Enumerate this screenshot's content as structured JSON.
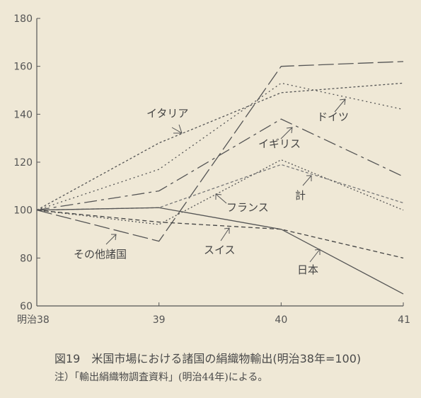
{
  "caption": {
    "title": "図19　米国市場における諸国の絹織物輸出(明治38年=100)",
    "note": "注）「輸出絹織物調査資料」(明治44年)による。"
  },
  "chart_data": {
    "type": "line",
    "categories": [
      "明治38",
      "39",
      "40",
      "41"
    ],
    "ylim": [
      60,
      180
    ],
    "yticks": [
      60,
      80,
      100,
      120,
      140,
      160,
      180
    ],
    "grid": false,
    "series": [
      {
        "name": "イタリア",
        "values": [
          100,
          128,
          149,
          153
        ],
        "dash": "3,3",
        "color": "#555555"
      },
      {
        "name": "ドイツ",
        "values": [
          100,
          117,
          153,
          142
        ],
        "dash": "2,4",
        "color": "#555555"
      },
      {
        "name": "イギリス",
        "values": [
          100,
          108,
          138,
          114
        ],
        "dash": "18,6,4,6",
        "color": "#555555"
      },
      {
        "name": "その他諸国",
        "values": [
          100,
          87,
          160,
          162
        ],
        "dash": "22,6",
        "color": "#555555"
      },
      {
        "name": "計",
        "values": [
          100,
          101,
          119,
          103
        ],
        "dash": "4,3",
        "color": "#777777"
      },
      {
        "name": "フランス",
        "values": [
          100,
          94,
          121,
          100
        ],
        "dash": "2,3",
        "color": "#555555"
      },
      {
        "name": "スイス",
        "values": [
          100,
          95,
          92,
          80
        ],
        "dash": "6,4",
        "color": "#444444"
      },
      {
        "name": "日本",
        "values": [
          100,
          101,
          92,
          65
        ],
        "dash": "",
        "color": "#555555"
      }
    ]
  }
}
